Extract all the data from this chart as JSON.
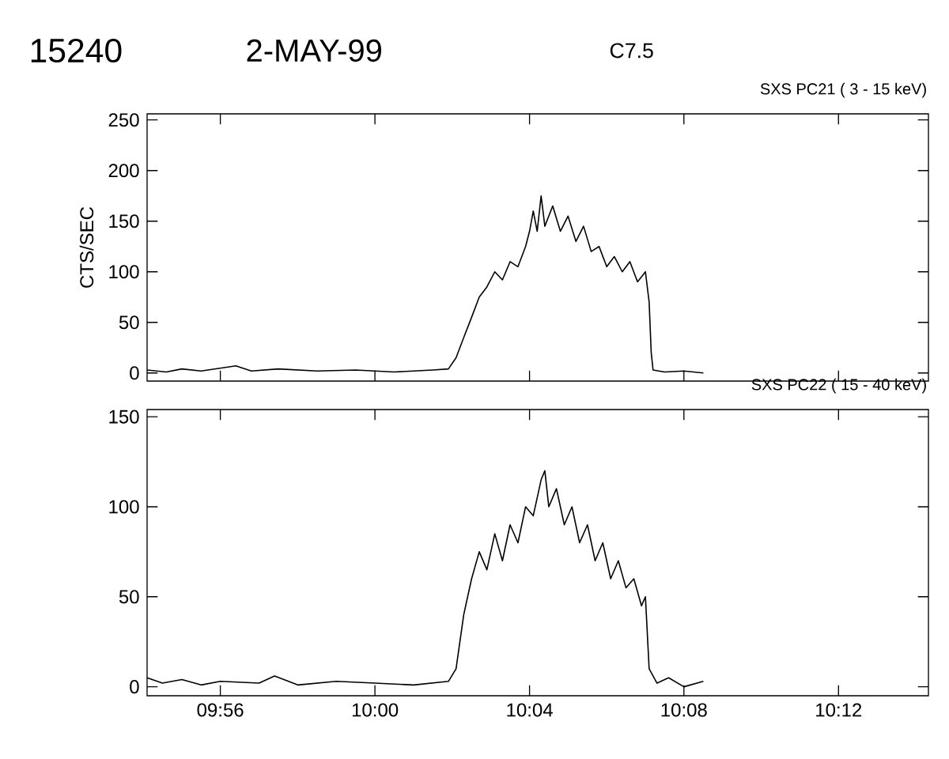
{
  "chart_data": [
    {
      "type": "line",
      "title": "SXS PC21  (  3 - 15 keV)",
      "ylabel": "CTS/SEC",
      "annotations": [
        "15240",
        "2-MAY-99",
        "C7.5"
      ],
      "color": "#000000",
      "x": [
        9.9017,
        9.91,
        9.9167,
        9.925,
        9.94,
        9.9467,
        9.9583,
        9.975,
        9.9917,
        10.0083,
        10.025,
        10.0317,
        10.035,
        10.0383,
        10.0417,
        10.045,
        10.0483,
        10.0517,
        10.055,
        10.0583,
        10.0617,
        10.065,
        10.0667,
        10.0683,
        10.07,
        10.0717,
        10.0733,
        10.0767,
        10.08,
        10.0833,
        10.0867,
        10.09,
        10.0933,
        10.0967,
        10.1,
        10.1033,
        10.1067,
        10.11,
        10.1133,
        10.1167,
        10.1183,
        10.1192,
        10.12,
        10.125,
        10.1333,
        10.1417
      ],
      "values": [
        3,
        1,
        4,
        2,
        7,
        2,
        4,
        2,
        3,
        1,
        3,
        4,
        15,
        35,
        55,
        75,
        85,
        100,
        92,
        110,
        105,
        125,
        140,
        160,
        140,
        175,
        145,
        165,
        140,
        155,
        130,
        145,
        120,
        125,
        105,
        115,
        100,
        110,
        90,
        100,
        70,
        20,
        3,
        1,
        2,
        0
      ],
      "xlim": [
        9.9017,
        10.2388
      ],
      "ylim": [
        -8,
        256
      ],
      "xticks": [
        {
          "value": 9.9333,
          "label": null
        },
        {
          "value": 10,
          "label": null
        },
        {
          "value": 10.0667,
          "label": null
        },
        {
          "value": 10.1333,
          "label": null
        },
        {
          "value": 10.2,
          "label": null
        }
      ],
      "yticks": [
        0,
        50,
        100,
        150,
        200,
        250
      ],
      "tick_labels": "y"
    },
    {
      "type": "line",
      "title": "SXS PC22  ( 15 - 40 keV)",
      "color": "#000000",
      "x": [
        9.9017,
        9.9083,
        9.9167,
        9.925,
        9.9333,
        9.95,
        9.9567,
        9.9667,
        9.9833,
        10,
        10.0167,
        10.0317,
        10.035,
        10.0383,
        10.0417,
        10.045,
        10.0483,
        10.0517,
        10.055,
        10.0583,
        10.0617,
        10.065,
        10.0683,
        10.0717,
        10.0733,
        10.075,
        10.0783,
        10.0817,
        10.085,
        10.0883,
        10.0917,
        10.095,
        10.0983,
        10.1017,
        10.105,
        10.1083,
        10.1117,
        10.115,
        10.1167,
        10.1183,
        10.1217,
        10.1267,
        10.1333,
        10.1417
      ],
      "values": [
        5,
        2,
        4,
        1,
        3,
        2,
        6,
        1,
        3,
        2,
        1,
        3,
        10,
        40,
        60,
        75,
        65,
        85,
        70,
        90,
        80,
        100,
        95,
        115,
        120,
        100,
        110,
        90,
        100,
        80,
        90,
        70,
        80,
        60,
        70,
        55,
        60,
        45,
        50,
        10,
        2,
        5,
        0,
        3
      ],
      "xlim": [
        9.9017,
        10.2388
      ],
      "ylim": [
        -5,
        154
      ],
      "xticks": [
        {
          "value": 9.9333,
          "label": "09:56"
        },
        {
          "value": 10,
          "label": "10:00"
        },
        {
          "value": 10.0667,
          "label": "10:04"
        },
        {
          "value": 10.1333,
          "label": "10:08"
        },
        {
          "value": 10.2,
          "label": "10:12"
        }
      ],
      "yticks": [
        0,
        50,
        100,
        150
      ]
    }
  ]
}
